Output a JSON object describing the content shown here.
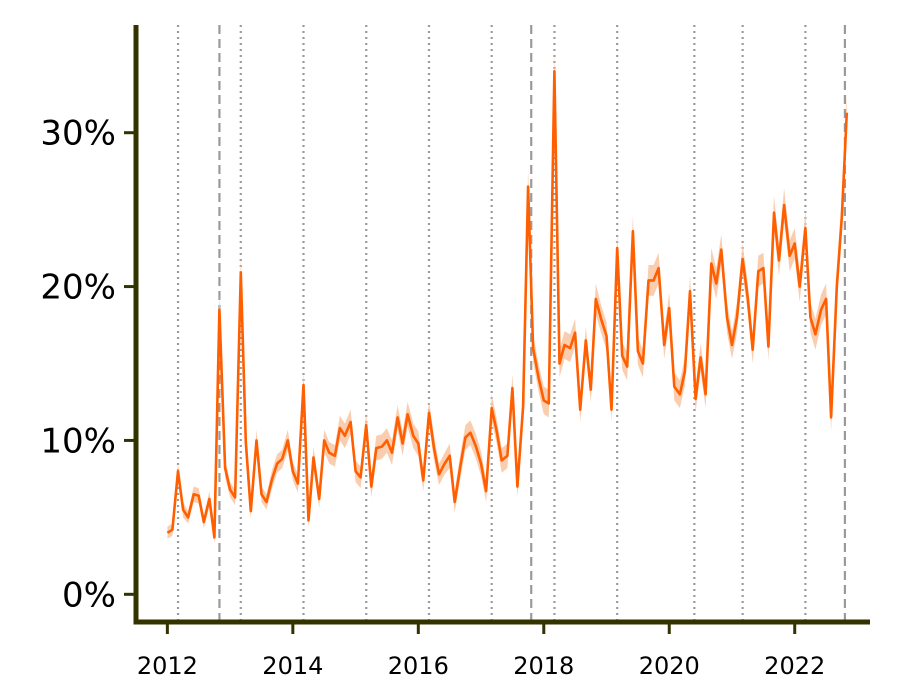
{
  "chart_data": {
    "type": "line",
    "title": "",
    "xlabel": "",
    "ylabel": "",
    "xlim": [
      2011.5,
      2023.2
    ],
    "ylim": [
      -1.8,
      37
    ],
    "y_ticks": [
      0,
      10,
      20,
      30
    ],
    "y_tick_labels": [
      "0%",
      "10%",
      "20%",
      "30%"
    ],
    "x_ticks": [
      2012,
      2014,
      2016,
      2018,
      2020,
      2022
    ],
    "x_tick_labels": [
      "2012",
      "2014",
      "2016",
      "2018",
      "2020",
      "2022"
    ],
    "grid": false,
    "legend": "none",
    "line_color": "#ff5f00",
    "band_color": "#fbc8a6",
    "axis_color": "#333300",
    "vline_color": "#9a9a9a",
    "vlines_dotted": [
      2012.17,
      2013.17,
      2014.17,
      2015.17,
      2016.17,
      2017.17,
      2018.17,
      2019.17,
      2020.4,
      2021.17,
      2022.17
    ],
    "vlines_dashed": [
      2012.83,
      2017.8,
      2022.8
    ],
    "series": [
      {
        "x": [
          2012.0,
          2012.08,
          2012.17,
          2012.25,
          2012.33,
          2012.42,
          2012.5,
          2012.58,
          2012.67,
          2012.75,
          2012.83,
          2012.92,
          2013.0,
          2013.08,
          2013.17,
          2013.25,
          2013.33,
          2013.42,
          2013.5,
          2013.58,
          2013.67,
          2013.75,
          2013.83,
          2013.92,
          2014.0,
          2014.08,
          2014.17,
          2014.25,
          2014.33,
          2014.42,
          2014.5,
          2014.58,
          2014.67,
          2014.75,
          2014.83,
          2014.92,
          2015.0,
          2015.08,
          2015.17,
          2015.25,
          2015.33,
          2015.42,
          2015.5,
          2015.58,
          2015.67,
          2015.75,
          2015.83,
          2015.92,
          2016.0,
          2016.08,
          2016.17,
          2016.25,
          2016.33,
          2016.42,
          2016.5,
          2016.58,
          2016.67,
          2016.75,
          2016.83,
          2016.92,
          2017.0,
          2017.08,
          2017.17,
          2017.25,
          2017.33,
          2017.42,
          2017.5,
          2017.58,
          2017.67,
          2017.75,
          2017.83,
          2017.92,
          2018.0,
          2018.08,
          2018.17,
          2018.25,
          2018.33,
          2018.42,
          2018.5,
          2018.58,
          2018.67,
          2018.75,
          2018.83,
          2018.92,
          2019.0,
          2019.08,
          2019.17,
          2019.25,
          2019.33,
          2019.42,
          2019.5,
          2019.58,
          2019.67,
          2019.75,
          2019.83,
          2019.92,
          2020.0,
          2020.08,
          2020.17,
          2020.25,
          2020.33,
          2020.42,
          2020.5,
          2020.58,
          2020.67,
          2020.75,
          2020.83,
          2020.92,
          2021.0,
          2021.08,
          2021.17,
          2021.25,
          2021.33,
          2021.42,
          2021.5,
          2021.58,
          2021.67,
          2021.75,
          2021.83,
          2021.92,
          2022.0,
          2022.08,
          2022.17,
          2022.25,
          2022.33,
          2022.42,
          2022.5,
          2022.58,
          2022.67,
          2022.75,
          2022.83
        ],
        "values": [
          4.0,
          4.2,
          8.0,
          5.5,
          5.0,
          6.5,
          6.4,
          4.7,
          6.2,
          3.7,
          18.5,
          8.2,
          6.8,
          6.3,
          20.9,
          9.9,
          5.4,
          10.0,
          6.5,
          6.0,
          7.5,
          8.5,
          8.8,
          10.0,
          8.0,
          7.2,
          13.6,
          4.8,
          8.9,
          6.2,
          10.0,
          9.2,
          9.0,
          10.8,
          10.3,
          11.2,
          8.0,
          7.6,
          11.0,
          7.0,
          9.5,
          9.6,
          10.0,
          9.2,
          11.5,
          9.8,
          11.7,
          10.3,
          9.8,
          7.4,
          11.8,
          9.5,
          7.8,
          8.5,
          9.0,
          6.0,
          8.3,
          10.2,
          10.5,
          9.6,
          8.5,
          6.7,
          12.1,
          10.6,
          8.7,
          9.0,
          13.4,
          7.0,
          12.2,
          26.5,
          16.0,
          14.0,
          12.6,
          12.4,
          34.0,
          15.0,
          16.2,
          16.0,
          17.0,
          12.0,
          16.5,
          13.3,
          19.2,
          17.8,
          16.8,
          12.0,
          22.5,
          15.5,
          14.8,
          23.6,
          15.8,
          15.0,
          20.4,
          20.4,
          21.2,
          16.2,
          18.6,
          13.5,
          13.0,
          14.5,
          19.7,
          12.7,
          15.4,
          13.0,
          21.5,
          20.2,
          22.4,
          18.0,
          16.2,
          18.0,
          21.8,
          19.3,
          15.9,
          21.0,
          21.2,
          16.1,
          24.8,
          21.7,
          25.3,
          22.0,
          22.8,
          20.0,
          23.8,
          18.0,
          16.9,
          18.5,
          19.2,
          11.5,
          20.0,
          24.5,
          31.3
        ],
        "band_halfwidth": [
          0.4,
          0.4,
          0.5,
          0.5,
          0.4,
          0.5,
          0.5,
          0.4,
          0.5,
          0.4,
          1.0,
          0.6,
          0.5,
          0.5,
          1.0,
          0.7,
          0.5,
          0.7,
          0.5,
          0.5,
          0.6,
          0.6,
          0.6,
          0.7,
          0.6,
          0.6,
          0.8,
          0.5,
          0.7,
          0.6,
          0.7,
          0.7,
          0.7,
          0.8,
          0.8,
          0.8,
          0.7,
          0.7,
          0.8,
          0.7,
          0.8,
          0.8,
          0.8,
          0.8,
          0.8,
          0.8,
          0.8,
          0.8,
          0.8,
          0.7,
          0.8,
          0.8,
          0.7,
          0.7,
          0.8,
          0.7,
          0.8,
          0.8,
          0.8,
          0.8,
          0.8,
          0.7,
          0.9,
          0.8,
          0.8,
          0.8,
          0.9,
          0.7,
          0.9,
          1.2,
          0.9,
          0.9,
          0.9,
          0.9,
          1.3,
          0.9,
          0.9,
          0.9,
          0.9,
          0.8,
          0.9,
          0.8,
          1.0,
          0.9,
          0.9,
          0.8,
          1.0,
          0.9,
          0.9,
          1.0,
          0.9,
          0.9,
          1.0,
          1.0,
          1.0,
          0.9,
          1.0,
          0.9,
          0.9,
          0.9,
          1.0,
          0.9,
          0.9,
          0.9,
          1.0,
          1.0,
          1.0,
          1.0,
          0.9,
          1.0,
          1.0,
          1.0,
          0.9,
          1.0,
          1.0,
          0.9,
          1.1,
          1.0,
          1.1,
          1.0,
          1.0,
          1.0,
          1.1,
          1.0,
          1.0,
          1.0,
          1.0,
          0.9,
          1.1,
          1.2,
          1.3
        ]
      }
    ]
  }
}
